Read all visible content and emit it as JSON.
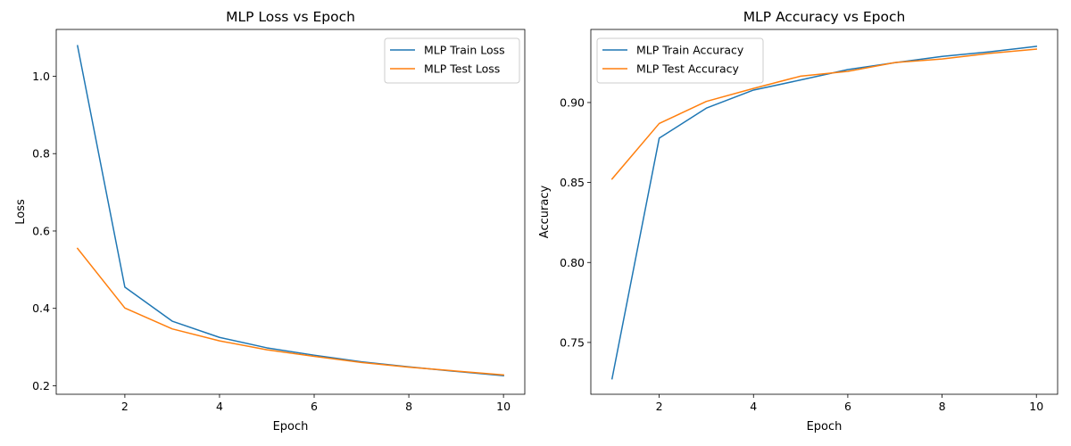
{
  "colors": {
    "train": "#1f77b4",
    "test": "#ff7f0e"
  },
  "chart_data": [
    {
      "type": "line",
      "title": "MLP Loss vs Epoch",
      "xlabel": "Epoch",
      "ylabel": "Loss",
      "x": [
        1,
        2,
        3,
        4,
        5,
        6,
        7,
        8,
        9,
        10
      ],
      "xlim": [
        0.55,
        10.45
      ],
      "ylim": [
        0.178,
        1.121
      ],
      "xticks": [
        2,
        4,
        6,
        8,
        10
      ],
      "yticks": [
        0.2,
        0.4,
        0.6,
        0.8,
        1.0
      ],
      "ytick_labels": [
        "0.2",
        "0.4",
        "0.6",
        "0.8",
        "1.0"
      ],
      "legend_position": "top-right",
      "grid": false,
      "series": [
        {
          "name": "MLP Train Loss",
          "color": "#1f77b4",
          "values": [
            1.079,
            0.455,
            0.367,
            0.325,
            0.298,
            0.279,
            0.262,
            0.249,
            0.237,
            0.226
          ]
        },
        {
          "name": "MLP Test Loss",
          "color": "#ff7f0e",
          "values": [
            0.555,
            0.401,
            0.347,
            0.316,
            0.293,
            0.276,
            0.26,
            0.248,
            0.238,
            0.228
          ]
        }
      ]
    },
    {
      "type": "line",
      "title": "MLP Accuracy vs Epoch",
      "xlabel": "Epoch",
      "ylabel": "Accuracy",
      "x": [
        1,
        2,
        3,
        4,
        5,
        6,
        7,
        8,
        9,
        10
      ],
      "xlim": [
        0.55,
        10.45
      ],
      "ylim": [
        0.7176,
        0.9457
      ],
      "xticks": [
        2,
        4,
        6,
        8,
        10
      ],
      "yticks": [
        0.75,
        0.8,
        0.85,
        0.9
      ],
      "ytick_labels": [
        "0.75",
        "0.80",
        "0.85",
        "0.90"
      ],
      "legend_position": "top-left",
      "grid": false,
      "series": [
        {
          "name": "MLP Train Accuracy",
          "color": "#1f77b4",
          "values": [
            0.7273,
            0.8777,
            0.8965,
            0.9078,
            0.9141,
            0.9206,
            0.9249,
            0.9288,
            0.9317,
            0.9351
          ]
        },
        {
          "name": "MLP Test Accuracy",
          "color": "#ff7f0e",
          "values": [
            0.8522,
            0.8869,
            0.9007,
            0.9088,
            0.9165,
            0.9195,
            0.925,
            0.9272,
            0.9307,
            0.9334
          ]
        }
      ]
    }
  ]
}
